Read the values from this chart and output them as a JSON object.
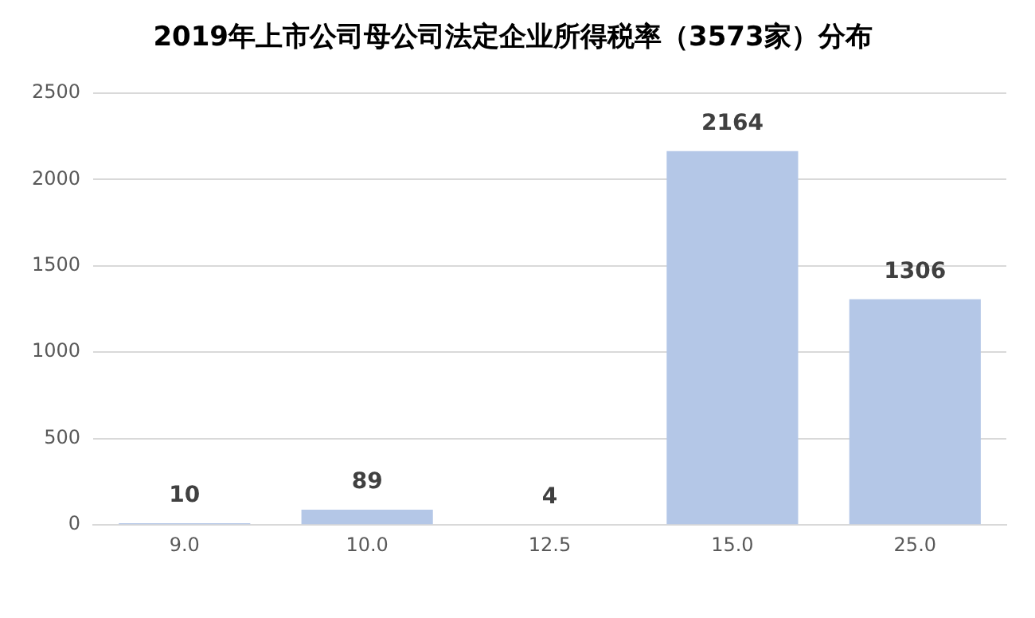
{
  "chart_data": {
    "type": "bar",
    "title": "2019年上市公司母公司法定企业所得税率（3573家）分布",
    "categories": [
      "9.0",
      "10.0",
      "12.5",
      "15.0",
      "25.0"
    ],
    "values": [
      10,
      89,
      4,
      2164,
      1306
    ],
    "color": "#b4c7e7",
    "ylim": [
      0,
      2500
    ],
    "yticks": [
      0,
      500,
      1000,
      1500,
      2000,
      2500
    ],
    "grid": "y",
    "data_labels": true,
    "legend": false
  }
}
